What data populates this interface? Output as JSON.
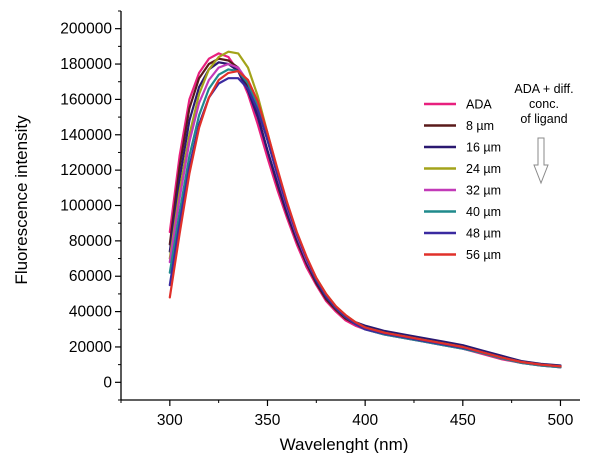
{
  "chart_data": {
    "type": "line",
    "title": "",
    "xlabel": "Wavelenght (nm)",
    "ylabel": "Fluorescence intensity",
    "xlim": [
      275,
      510
    ],
    "ylim": [
      -10000,
      210000
    ],
    "xticks": [
      300,
      350,
      400,
      450,
      500
    ],
    "xtick_labels": [
      "300",
      "350",
      "400",
      "450",
      "500"
    ],
    "yticks": [
      0,
      20000,
      40000,
      60000,
      80000,
      100000,
      120000,
      140000,
      160000,
      180000,
      200000
    ],
    "ytick_labels": [
      "0",
      "20000",
      "40000",
      "60000",
      "80000",
      "100000",
      "120000",
      "140000",
      "160000",
      "180000",
      "200000"
    ],
    "grid": false,
    "legend_position": "right",
    "annotation": {
      "lines": [
        "ADA + diff.",
        "conc.",
        "of ligand"
      ],
      "arrow": "down"
    },
    "x": [
      300,
      305,
      310,
      315,
      320,
      325,
      330,
      335,
      340,
      345,
      350,
      355,
      360,
      365,
      370,
      375,
      380,
      385,
      390,
      395,
      400,
      410,
      420,
      430,
      440,
      450,
      460,
      470,
      480,
      490,
      500
    ],
    "series": [
      {
        "name": "ADA",
        "color": "#e8207e",
        "values": [
          85000,
          128000,
          160000,
          175000,
          183000,
          186000,
          184000,
          176000,
          163000,
          146000,
          127000,
          109000,
          93000,
          78000,
          65000,
          55000,
          46000,
          40000,
          35000,
          32000,
          30000,
          27000,
          25000,
          23000,
          21000,
          19000,
          16000,
          13000,
          11000,
          9500,
          8500
        ]
      },
      {
        "name": "8 µm",
        "color": "#5a1a1a",
        "values": [
          78000,
          122000,
          155000,
          172000,
          180000,
          183000,
          182000,
          178000,
          167000,
          151000,
          131000,
          112000,
          95000,
          80000,
          67000,
          56000,
          47000,
          41000,
          36000,
          33000,
          31000,
          28000,
          26000,
          24000,
          22000,
          20000,
          17000,
          14000,
          11500,
          10000,
          9000
        ]
      },
      {
        "name": "16 µm",
        "color": "#2a1870",
        "values": [
          74000,
          115000,
          148000,
          167000,
          177000,
          181000,
          180000,
          176000,
          165000,
          150000,
          131000,
          113000,
          96000,
          81000,
          68000,
          57000,
          48000,
          42000,
          37000,
          34000,
          32000,
          29000,
          27000,
          25000,
          23000,
          21000,
          18000,
          15000,
          12000,
          10500,
          9500
        ]
      },
      {
        "name": "24 µm",
        "color": "#a3a31a",
        "values": [
          70000,
          108000,
          140000,
          163000,
          177000,
          184000,
          187000,
          186000,
          178000,
          162000,
          141000,
          120000,
          101000,
          84000,
          70000,
          59000,
          50000,
          43000,
          38000,
          34000,
          31000,
          28000,
          26000,
          24000,
          22000,
          20000,
          17000,
          14000,
          11500,
          10000,
          9000
        ]
      },
      {
        "name": "32 µm",
        "color": "#c23ab8",
        "values": [
          68000,
          104000,
          136000,
          158000,
          171000,
          178000,
          180000,
          178000,
          170000,
          156000,
          137000,
          117000,
          99000,
          83000,
          69000,
          58000,
          49000,
          42000,
          37000,
          33000,
          30000,
          27000,
          25000,
          23000,
          21000,
          19000,
          16500,
          13500,
          11000,
          9500,
          8500
        ]
      },
      {
        "name": "40 µm",
        "color": "#1f8a8c",
        "values": [
          62000,
          96000,
          128000,
          151000,
          166000,
          174000,
          177000,
          176000,
          169000,
          156000,
          137000,
          118000,
          100000,
          84000,
          70000,
          58000,
          49000,
          42000,
          37000,
          33000,
          30000,
          27000,
          25000,
          23000,
          21000,
          19000,
          16500,
          13500,
          11000,
          9500,
          8500
        ]
      },
      {
        "name": "48 µm",
        "color": "#3a2aa0",
        "values": [
          55000,
          90000,
          122000,
          146000,
          161000,
          169000,
          172000,
          172000,
          166000,
          154000,
          137000,
          118000,
          100000,
          84000,
          70000,
          58000,
          49000,
          42000,
          37000,
          33000,
          30000,
          27500,
          25500,
          23500,
          21500,
          19500,
          17000,
          14000,
          11500,
          10000,
          9000
        ]
      },
      {
        "name": "56 µm",
        "color": "#e0302a",
        "values": [
          48000,
          84000,
          118000,
          144000,
          161000,
          171000,
          175000,
          176000,
          171000,
          159000,
          141000,
          121000,
          102000,
          85000,
          71000,
          59000,
          50000,
          43000,
          38000,
          34000,
          31000,
          28000,
          26000,
          24000,
          22000,
          20000,
          17000,
          14000,
          11500,
          10000,
          9000
        ]
      }
    ]
  }
}
